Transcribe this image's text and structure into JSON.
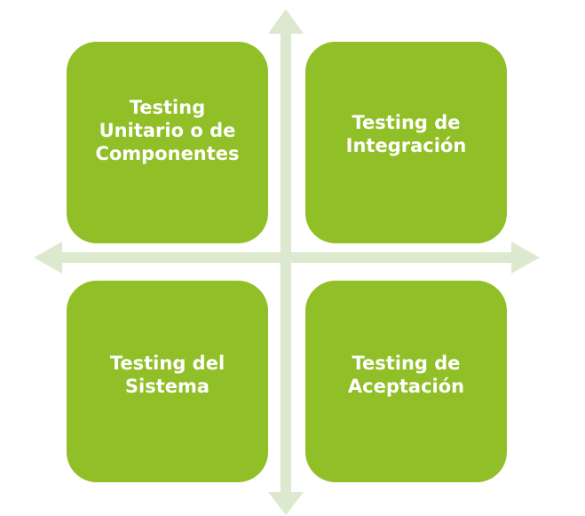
{
  "colors": {
    "box_fill": "#90bf27",
    "box_text": "#ffffff",
    "arrow_fill": "#dde9cf"
  },
  "quadrants": {
    "top_left": {
      "label": "Testing\nUnitario o  de\nComponentes"
    },
    "top_right": {
      "label": "Testing de\nIntegración"
    },
    "bottom_left": {
      "label": "Testing del\nSistema"
    },
    "bottom_right": {
      "label": "Testing de\nAceptación"
    }
  },
  "axes": {
    "vertical": "double-headed-arrow",
    "horizontal": "double-headed-arrow"
  }
}
